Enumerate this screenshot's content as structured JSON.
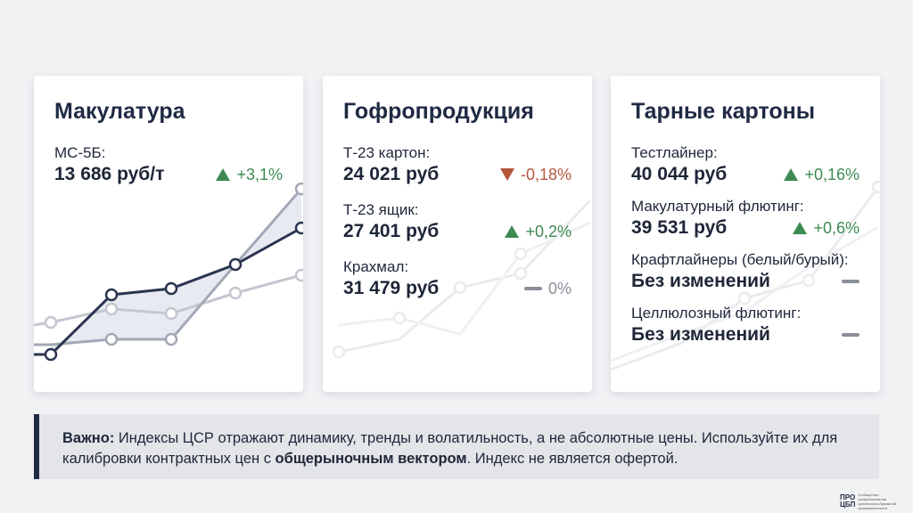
{
  "cards": [
    {
      "title": "Макулатура",
      "items": [
        {
          "label": "МС-5Б:",
          "value": "13 686 руб/т",
          "change": "+3,1%",
          "trend": "up"
        }
      ]
    },
    {
      "title": "Гофропродукция",
      "items": [
        {
          "label": "Т-23 картон:",
          "value": "24 021 руб",
          "change": "-0,18%",
          "trend": "down"
        },
        {
          "label": "Т-23 ящик:",
          "value": "27 401 руб",
          "change": "+0,2%",
          "trend": "up"
        },
        {
          "label": "Крахмал:",
          "value": "31 479 руб",
          "change": "0%",
          "trend": "flat"
        }
      ]
    },
    {
      "title": "Тарные картоны",
      "items": [
        {
          "label": "Тестлайнер:",
          "value": "40 044 руб",
          "change": "+0,16%",
          "trend": "up"
        },
        {
          "label": "Макулатурный флютинг:",
          "value": "39 531 руб",
          "change": "+0,6%",
          "trend": "up"
        },
        {
          "label": "Крафтлайнеры (белый/бурый):",
          "value": "Без изменений",
          "change": null,
          "trend": "flat"
        },
        {
          "label": "Целлюлозный флютинг:",
          "value": "Без изменений",
          "change": null,
          "trend": "flat"
        }
      ]
    }
  ],
  "note": {
    "segments": [
      {
        "text": "Важно:",
        "bold": true
      },
      {
        "text": " Индексы ЦСР отражают динамику, тренды и волатильность, а не абсолютные цены. Используйте их для калибровки контрактных цен с ",
        "bold": false
      },
      {
        "text": "общерыночным вектором",
        "bold": true
      },
      {
        "text": ". Индекс не является офертой.",
        "bold": false
      }
    ]
  },
  "logo": {
    "mark_top": "ПРО",
    "mark_bottom": "ЦБП",
    "caption": "Сообщество профессионалов целлюлозно-бумажной промышленности"
  }
}
